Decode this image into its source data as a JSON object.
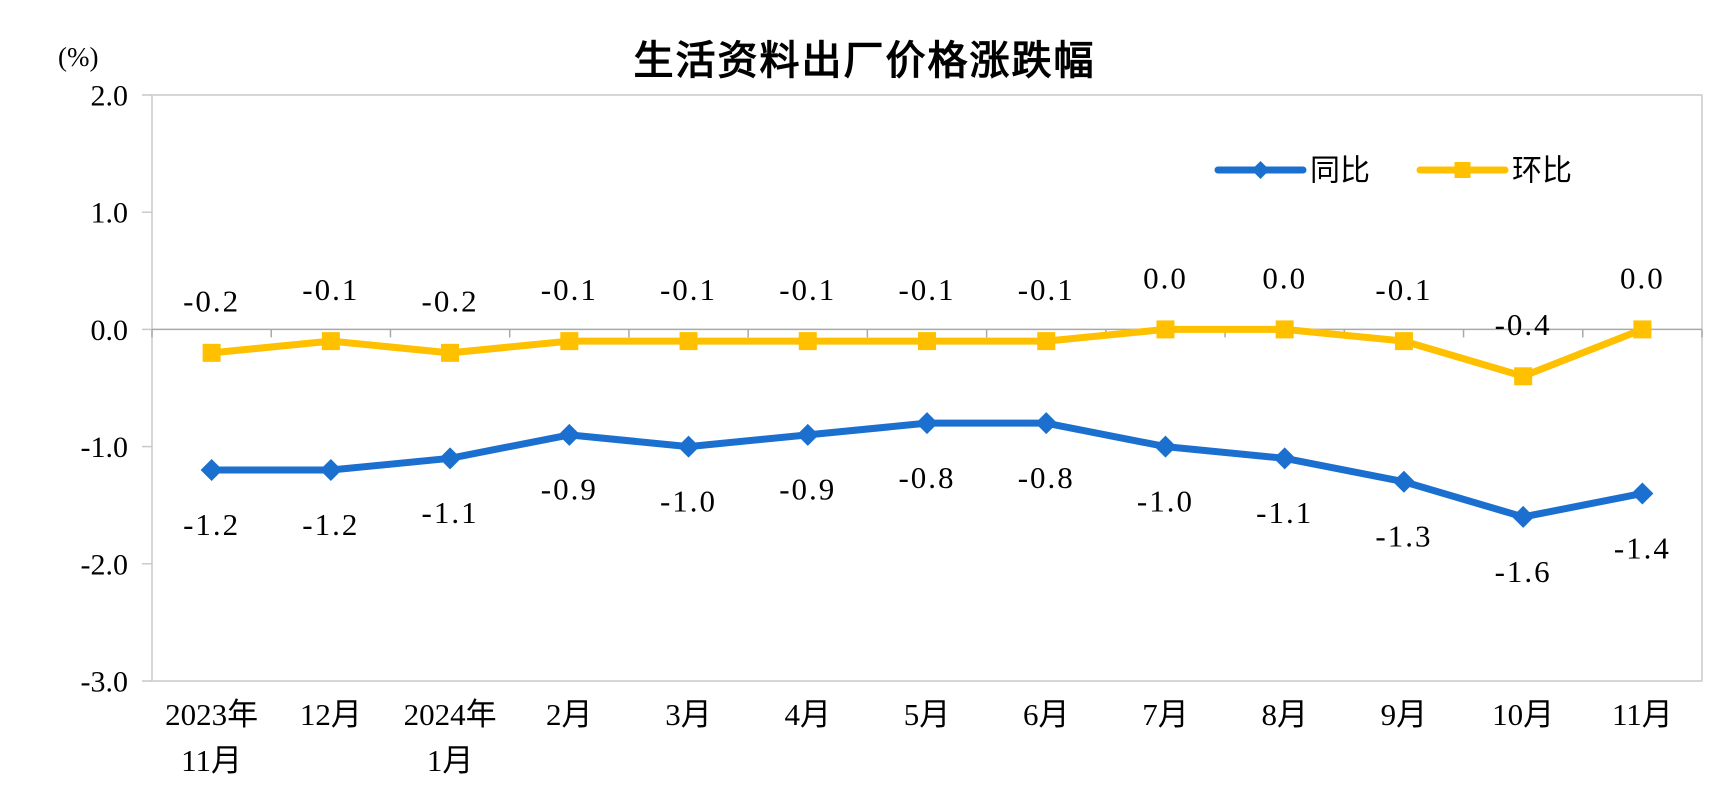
{
  "title": "生活资料出厂价格涨跌幅",
  "y_axis_unit": "(%)",
  "chart_data": {
    "type": "line",
    "title": "生活资料出厂价格涨跌幅",
    "ylabel": "(%)",
    "ylim": [
      -3.0,
      2.0
    ],
    "ytick_labels": [
      "2.0",
      "1.0",
      "0.0",
      "-1.0",
      "-2.0",
      "-3.0"
    ],
    "grid": false,
    "legend_position": "inside-top-right",
    "categories": [
      [
        "2023年",
        "11月"
      ],
      [
        "12月"
      ],
      [
        "2024年",
        "1月"
      ],
      [
        "2月"
      ],
      [
        "3月"
      ],
      [
        "4月"
      ],
      [
        "5月"
      ],
      [
        "6月"
      ],
      [
        "7月"
      ],
      [
        "8月"
      ],
      [
        "9月"
      ],
      [
        "10月"
      ],
      [
        "11月"
      ]
    ],
    "series": [
      {
        "name": "同比",
        "color": "#1b6fce",
        "marker": "diamond",
        "label_position": "below",
        "values": [
          -1.2,
          -1.2,
          -1.1,
          -0.9,
          -1.0,
          -0.9,
          -0.8,
          -0.8,
          -1.0,
          -1.1,
          -1.3,
          -1.6,
          -1.4
        ],
        "labels": [
          "-1.2",
          "-1.2",
          "-1.1",
          "-0.9",
          "-1.0",
          "-0.9",
          "-0.8",
          "-0.8",
          "-1.0",
          "-1.1",
          "-1.3",
          "-1.6",
          "-1.4"
        ]
      },
      {
        "name": "环比",
        "color": "#ffc000",
        "marker": "square",
        "label_position": "above",
        "values": [
          -0.2,
          -0.1,
          -0.2,
          -0.1,
          -0.1,
          -0.1,
          -0.1,
          -0.1,
          0.0,
          0.0,
          -0.1,
          -0.4,
          0.0
        ],
        "labels": [
          "-0.2",
          "-0.1",
          "-0.2",
          "-0.1",
          "-0.1",
          "-0.1",
          "-0.1",
          "-0.1",
          "0.0",
          "0.0",
          "-0.1",
          "-0.4",
          "0.0"
        ]
      }
    ],
    "axis_colors": {
      "plot_border": "#c9c9c9",
      "zero_line": "#a9a9a9",
      "text": "#000000"
    }
  }
}
